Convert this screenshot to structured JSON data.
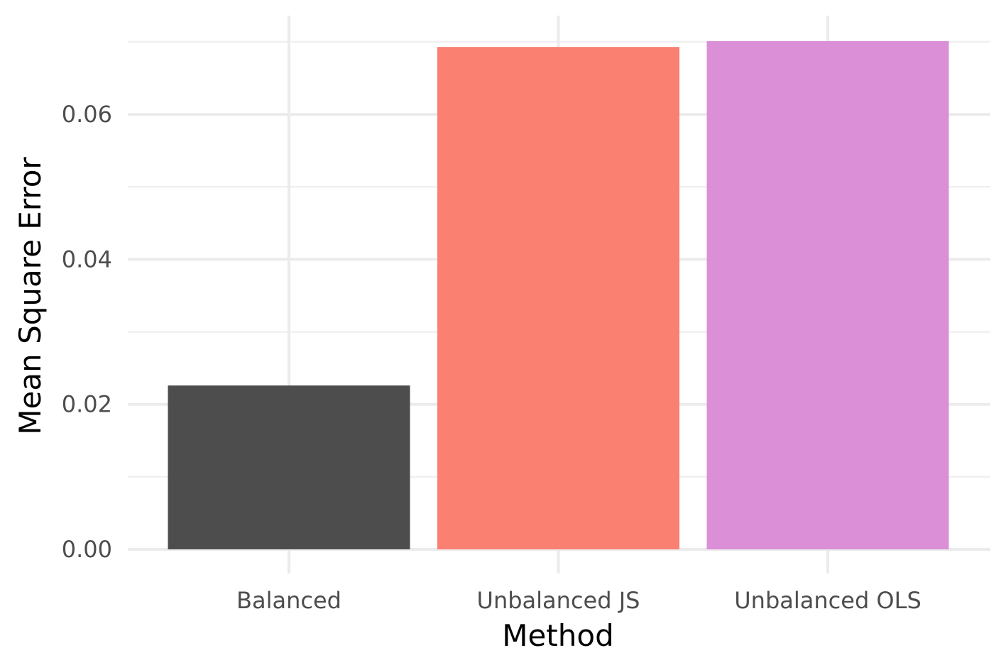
{
  "chart_data": {
    "type": "bar",
    "categories": [
      "Balanced",
      "Unbalanced JS",
      "Unbalanced OLS"
    ],
    "values": [
      0.0226,
      0.0693,
      0.0701
    ],
    "colors": [
      "#4d4d4d",
      "#fa8072",
      "#da8fd7"
    ],
    "xlabel": "Method",
    "ylabel": "Mean Square Error",
    "ylim": [
      0,
      0.07
    ],
    "yticks": [
      0,
      0.02,
      0.04,
      0.06
    ],
    "ytick_labels": [
      "0.00",
      "0.02",
      "0.04",
      "0.06"
    ],
    "grid": true,
    "legend": "none"
  }
}
